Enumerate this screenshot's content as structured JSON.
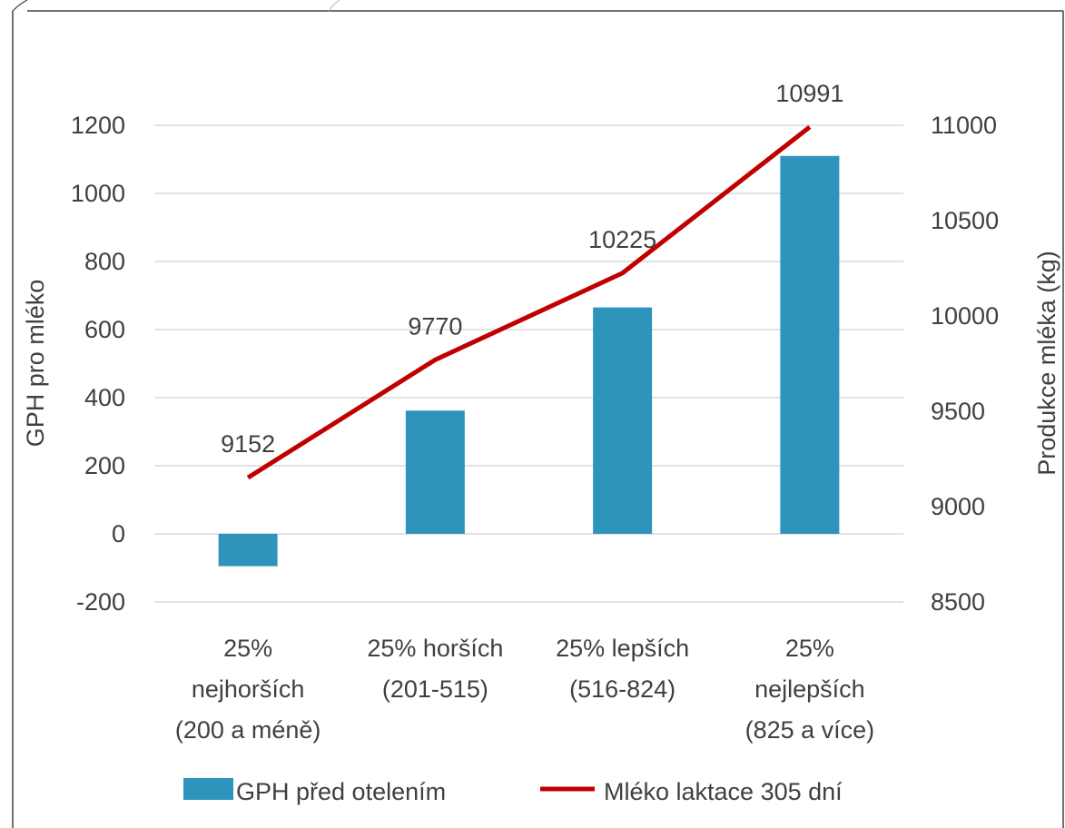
{
  "chart_data": {
    "type": "bar",
    "categories": [
      [
        "25%",
        "nejhorších",
        "(200 a méně)"
      ],
      [
        "25% horších",
        "(201-515)"
      ],
      [
        "25% lepších",
        "(516-824)"
      ],
      [
        "25%",
        "nejlepších",
        "(825 a více)"
      ]
    ],
    "series": [
      {
        "name": "GPH před otelením",
        "kind": "bar",
        "axis": "left",
        "color": "#2e94bc",
        "values": [
          -95,
          362,
          665,
          1110
        ]
      },
      {
        "name": "Mléko laktace 305 dní",
        "kind": "line",
        "axis": "right",
        "color": "#c00000",
        "values": [
          9152,
          9770,
          10225,
          10991
        ],
        "labels": [
          "9152",
          "9770",
          "10225",
          "10991"
        ]
      }
    ],
    "ylabel": "GPH pro mléko",
    "y2label": "Produkce mléka (kg)",
    "ylim": [
      -200,
      1200
    ],
    "y2lim": [
      8500,
      11000
    ],
    "yticks": [
      "1200",
      "1000",
      "800",
      "600",
      "400",
      "200",
      "0",
      "-200"
    ],
    "y2ticks": [
      "11000",
      "10500",
      "10000",
      "9500",
      "9000",
      "8500"
    ],
    "grid": true,
    "legend_position": "bottom"
  }
}
